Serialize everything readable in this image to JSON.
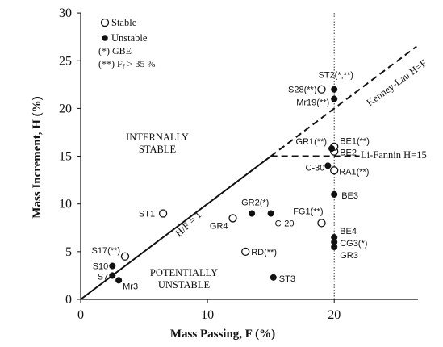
{
  "chart_data": {
    "type": "scatter",
    "xlabel": "Mass Passing, F (%)",
    "ylabel": "Mass Increment, H (%)",
    "xlim": [
      0,
      28
    ],
    "ylim": [
      0,
      30
    ],
    "x_ticks": [
      "0",
      "10",
      "20"
    ],
    "y_ticks": [
      "0",
      "5",
      "10",
      "15",
      "20",
      "25",
      "30"
    ],
    "grid": false,
    "legend": {
      "placement": "top-left",
      "entries": [
        {
          "label": "Stable",
          "marker": "open-circle"
        },
        {
          "label": "Unstable",
          "marker": "filled-circle"
        }
      ],
      "notes": [
        "(*) GBE",
        "(**) F",
        "f",
        " > 35 %"
      ]
    },
    "series": [
      {
        "name": "Stable",
        "marker": "open-circle",
        "points": [
          {
            "x": 6.5,
            "y": 9.0,
            "label": "ST1"
          },
          {
            "x": 3.5,
            "y": 4.5,
            "label": "S17(**)"
          },
          {
            "x": 12.0,
            "y": 8.5,
            "label": "GR4"
          },
          {
            "x": 13.0,
            "y": 5.0,
            "label": "RD(**)"
          },
          {
            "x": 19.0,
            "y": 8.0,
            "label": "FG1(**)"
          },
          {
            "x": 20.0,
            "y": 13.5,
            "label": "RA1(**)"
          },
          {
            "x": 20.0,
            "y": 15.5,
            "label": "BE2"
          },
          {
            "x": 20.0,
            "y": 16.0,
            "label": "BE1(**)"
          },
          {
            "x": 19.0,
            "y": 22.0,
            "label": "S28(**)"
          }
        ]
      },
      {
        "name": "Unstable",
        "marker": "filled-circle",
        "points": [
          {
            "x": 2.5,
            "y": 3.5,
            "label": "S10"
          },
          {
            "x": 2.5,
            "y": 2.5,
            "label": "S7"
          },
          {
            "x": 3.0,
            "y": 2.0,
            "label": "Mr3"
          },
          {
            "x": 13.5,
            "y": 9.0,
            "label": "GR2(*)"
          },
          {
            "x": 15.0,
            "y": 9.0,
            "label": "C-20"
          },
          {
            "x": 15.2,
            "y": 2.3,
            "label": "ST3"
          },
          {
            "x": 19.5,
            "y": 14.0,
            "label": "C-30"
          },
          {
            "x": 20.0,
            "y": 11.0,
            "label": "BE3"
          },
          {
            "x": 20.0,
            "y": 6.5,
            "label": "BE4"
          },
          {
            "x": 20.0,
            "y": 6.0,
            "label": "CG3(*)"
          },
          {
            "x": 20.0,
            "y": 5.5,
            "label": "GR3"
          },
          {
            "x": 20.0,
            "y": 21.0,
            "label": "Mr19(**)"
          },
          {
            "x": 20.0,
            "y": 22.0,
            "label": "ST2(*,**)"
          },
          {
            "x": 19.8,
            "y": 15.8,
            "label": "GR1(**)"
          }
        ]
      }
    ],
    "reference_lines": [
      {
        "label": "H/F = 1",
        "style": "solid"
      },
      {
        "label": "Kenney-Lau H=F",
        "style": "dashed"
      },
      {
        "label": "Li-Fannin H=15",
        "style": "dashed"
      },
      {
        "label": "",
        "style": "dotted-vertical",
        "x": 20
      }
    ],
    "annotations": [
      {
        "lines": [
          "INTERNALLY",
          "STABLE"
        ]
      },
      {
        "lines": [
          "POTENTIALLY",
          "UNSTABLE"
        ]
      }
    ]
  }
}
